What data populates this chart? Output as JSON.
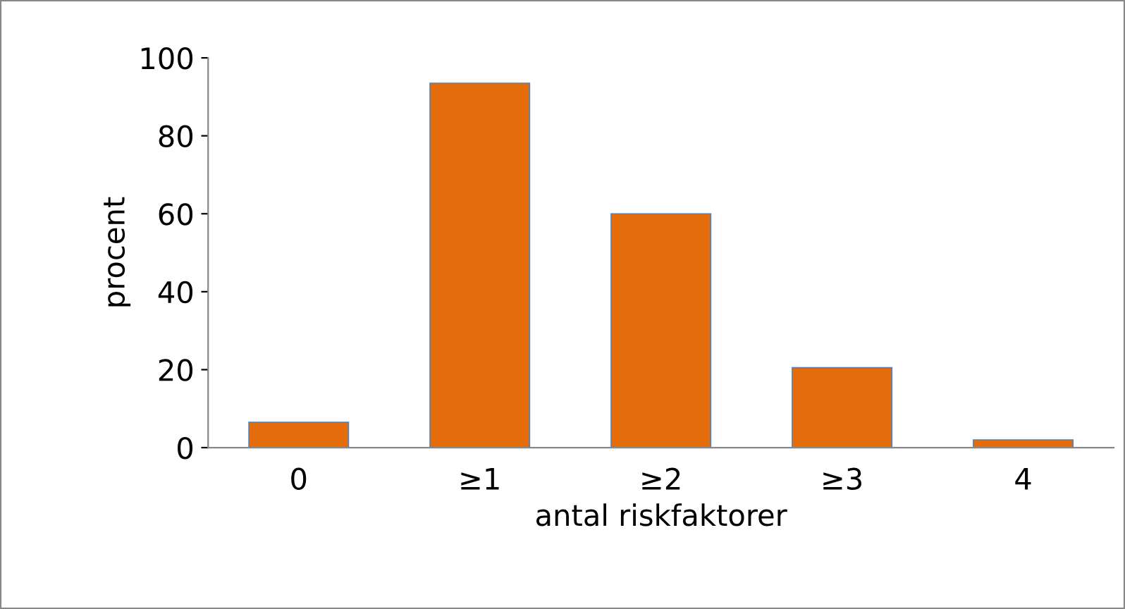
{
  "chart_data": {
    "type": "bar",
    "xlabel": "antal riskfaktorer",
    "ylabel": "procent",
    "categories": [
      "0",
      "≥1",
      "≥2",
      "≥3",
      "4"
    ],
    "values": [
      6.5,
      93.5,
      60,
      20.5,
      2
    ],
    "color": "#e46c0a",
    "ylim": [
      0,
      100
    ],
    "yticks": [
      0,
      20,
      40,
      60,
      80,
      100
    ],
    "grid": false
  }
}
